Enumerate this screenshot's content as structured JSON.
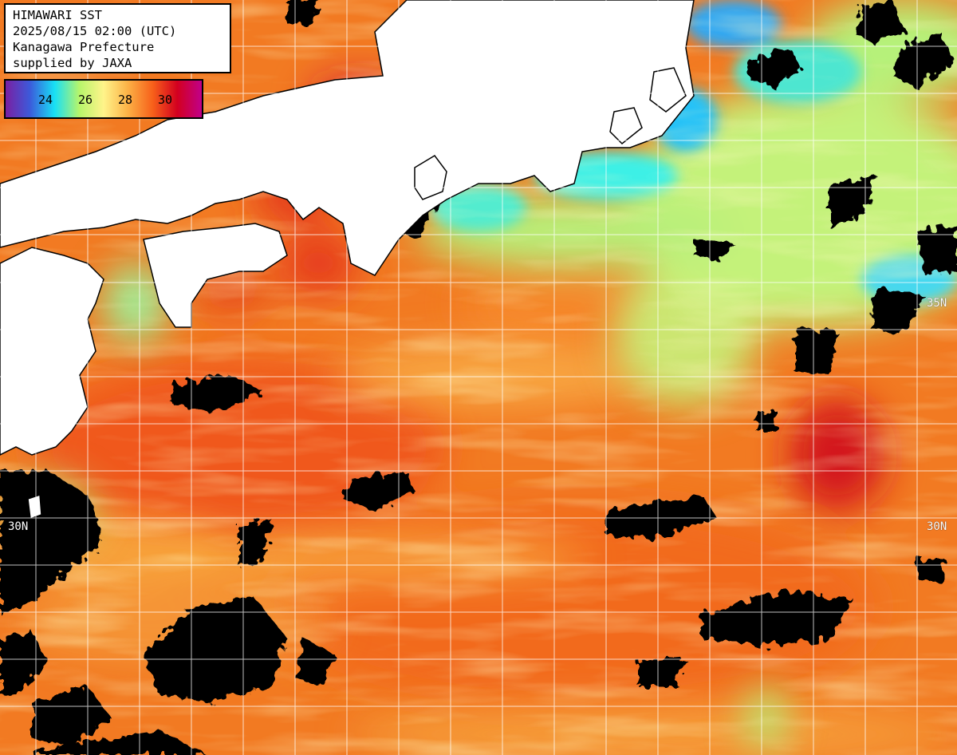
{
  "header": {
    "line1": "HIMAWARI SST",
    "line2": "2025/08/15 02:00 (UTC)",
    "line3": "Kanagawa Prefecture",
    "line4": "supplied by JAXA"
  },
  "legend": {
    "ticks": [
      "24",
      "26",
      "28",
      "30"
    ],
    "gradient_colors": [
      "#7a1fa2",
      "#3b5bdb",
      "#18e0f5",
      "#b6f56b",
      "#fff48a",
      "#fcb045",
      "#f7601a",
      "#d3001f",
      "#c0008a"
    ]
  },
  "graticule": {
    "labels": {
      "lat_left": "30N",
      "lat_right": "30N",
      "upper_right": "35N"
    }
  },
  "colors": {
    "land": "#ffffff",
    "cloud": "#000000",
    "gridline": "#ffffff",
    "sst_warm": "#f26a1b",
    "sst_hot": "#d81e1e",
    "sst_mild": "#f9b04a",
    "sst_cool": "#c8f27a",
    "sst_cooler": "#3ef0e6",
    "sst_cold": "#28b8f7"
  }
}
